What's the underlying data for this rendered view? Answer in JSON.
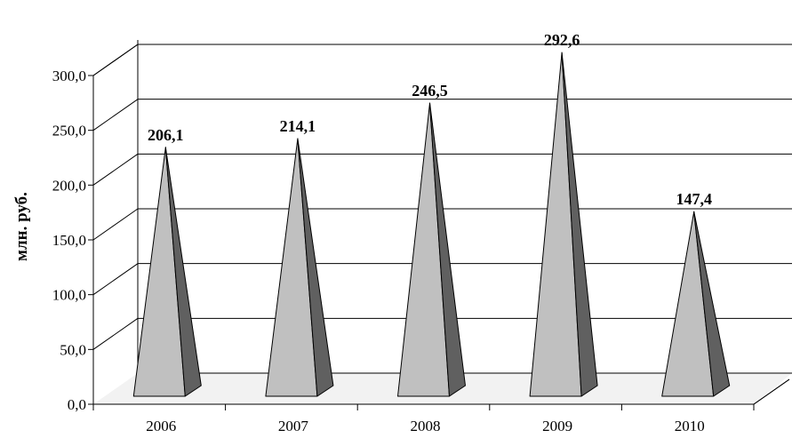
{
  "chart_data": {
    "type": "bar",
    "style": "3d-pyramid",
    "categories": [
      "2006",
      "2007",
      "2008",
      "2009",
      "2010"
    ],
    "series": [
      {
        "values": [
          206.1,
          214.1,
          246.5,
          292.6,
          147.4
        ]
      }
    ],
    "data_labels": [
      "206,1",
      "214,1",
      "246,5",
      "292,6",
      "147,4"
    ],
    "yticks": [
      "0,0",
      "50,0",
      "100,0",
      "150,0",
      "200,0",
      "250,0",
      "300,0"
    ],
    "ylabel": "млн. руб.",
    "ylim": [
      0,
      300
    ],
    "grid": true,
    "colors": {
      "front": "#c0c0c0",
      "side": "#606060",
      "floor": "#f2f2f2"
    }
  }
}
